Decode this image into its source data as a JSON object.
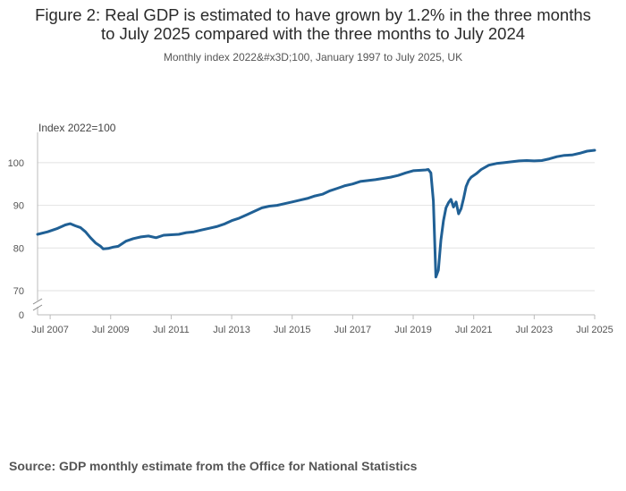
{
  "title_line1": "Figure 2: Real GDP is estimated to have grown by 1.2% in the three months",
  "title_line2": "to July 2025 compared with the three months to July 2024",
  "subtitle": "Monthly index 2022&#x3D;100, January 1997 to July 2025, UK",
  "source": "Source: GDP monthly estimate from the Office for National Statistics",
  "chart_data": {
    "type": "line",
    "ylabel": "Index 2022=100",
    "y_ticks": [
      100,
      90,
      80,
      70
    ],
    "y_zero_label": "0",
    "y_axis_broken": true,
    "ylim": [
      70,
      105
    ],
    "xlim": [
      "2007-02",
      "2025-07"
    ],
    "x_tick_labels": [
      "Jul 2007",
      "Jul 2009",
      "Jul 2011",
      "Jul 2013",
      "Jul 2015",
      "Jul 2017",
      "Jul 2019",
      "Jul 2021",
      "Jul 2023",
      "Jul 2025"
    ],
    "x_ticks": [
      "2007-07",
      "2009-07",
      "2011-07",
      "2013-07",
      "2015-07",
      "2017-07",
      "2019-07",
      "2021-07",
      "2023-07",
      "2025-07"
    ],
    "grid": true,
    "color": "#206095",
    "series": [
      {
        "points": [
          [
            "2007-02",
            83.2
          ],
          [
            "2007-06",
            83.8
          ],
          [
            "2007-10",
            84.6
          ],
          [
            "2008-01",
            85.4
          ],
          [
            "2008-03",
            85.7
          ],
          [
            "2008-05",
            85.2
          ],
          [
            "2008-07",
            84.8
          ],
          [
            "2008-09",
            83.8
          ],
          [
            "2008-11",
            82.4
          ],
          [
            "2009-01",
            81.2
          ],
          [
            "2009-03",
            80.4
          ],
          [
            "2009-04",
            79.8
          ],
          [
            "2009-06",
            79.9
          ],
          [
            "2009-08",
            80.2
          ],
          [
            "2009-10",
            80.4
          ],
          [
            "2010-01",
            81.6
          ],
          [
            "2010-04",
            82.2
          ],
          [
            "2010-07",
            82.6
          ],
          [
            "2010-10",
            82.8
          ],
          [
            "2011-01",
            82.4
          ],
          [
            "2011-04",
            83.0
          ],
          [
            "2011-07",
            83.1
          ],
          [
            "2011-10",
            83.2
          ],
          [
            "2012-01",
            83.6
          ],
          [
            "2012-04",
            83.8
          ],
          [
            "2012-07",
            84.2
          ],
          [
            "2012-10",
            84.6
          ],
          [
            "2013-01",
            85.0
          ],
          [
            "2013-04",
            85.6
          ],
          [
            "2013-07",
            86.4
          ],
          [
            "2013-10",
            87.0
          ],
          [
            "2014-01",
            87.8
          ],
          [
            "2014-04",
            88.6
          ],
          [
            "2014-07",
            89.4
          ],
          [
            "2014-10",
            89.8
          ],
          [
            "2015-01",
            90.0
          ],
          [
            "2015-04",
            90.4
          ],
          [
            "2015-07",
            90.8
          ],
          [
            "2015-10",
            91.2
          ],
          [
            "2016-01",
            91.6
          ],
          [
            "2016-04",
            92.2
          ],
          [
            "2016-07",
            92.6
          ],
          [
            "2016-10",
            93.4
          ],
          [
            "2017-01",
            94.0
          ],
          [
            "2017-04",
            94.6
          ],
          [
            "2017-07",
            95.0
          ],
          [
            "2017-10",
            95.6
          ],
          [
            "2018-01",
            95.8
          ],
          [
            "2018-04",
            96.0
          ],
          [
            "2018-07",
            96.3
          ],
          [
            "2018-10",
            96.6
          ],
          [
            "2019-01",
            97.0
          ],
          [
            "2019-04",
            97.6
          ],
          [
            "2019-07",
            98.1
          ],
          [
            "2019-10",
            98.2
          ],
          [
            "2019-12",
            98.3
          ],
          [
            "2020-01",
            98.4
          ],
          [
            "2020-02",
            97.6
          ],
          [
            "2020-03",
            91.0
          ],
          [
            "2020-04",
            73.2
          ],
          [
            "2020-05",
            74.8
          ],
          [
            "2020-06",
            81.8
          ],
          [
            "2020-07",
            86.4
          ],
          [
            "2020-08",
            89.4
          ],
          [
            "2020-09",
            90.6
          ],
          [
            "2020-10",
            91.4
          ],
          [
            "2020-11",
            89.6
          ],
          [
            "2020-12",
            90.8
          ],
          [
            "2021-01",
            88.0
          ],
          [
            "2021-02",
            89.2
          ],
          [
            "2021-03",
            91.6
          ],
          [
            "2021-04",
            94.4
          ],
          [
            "2021-05",
            95.8
          ],
          [
            "2021-06",
            96.6
          ],
          [
            "2021-08",
            97.4
          ],
          [
            "2021-10",
            98.4
          ],
          [
            "2022-01",
            99.4
          ],
          [
            "2022-04",
            99.8
          ],
          [
            "2022-07",
            100.0
          ],
          [
            "2022-10",
            100.2
          ],
          [
            "2023-01",
            100.4
          ],
          [
            "2023-04",
            100.5
          ],
          [
            "2023-07",
            100.4
          ],
          [
            "2023-10",
            100.5
          ],
          [
            "2024-01",
            100.9
          ],
          [
            "2024-04",
            101.4
          ],
          [
            "2024-07",
            101.7
          ],
          [
            "2024-10",
            101.8
          ],
          [
            "2025-01",
            102.2
          ],
          [
            "2025-04",
            102.7
          ],
          [
            "2025-07",
            102.9
          ]
        ]
      }
    ]
  }
}
